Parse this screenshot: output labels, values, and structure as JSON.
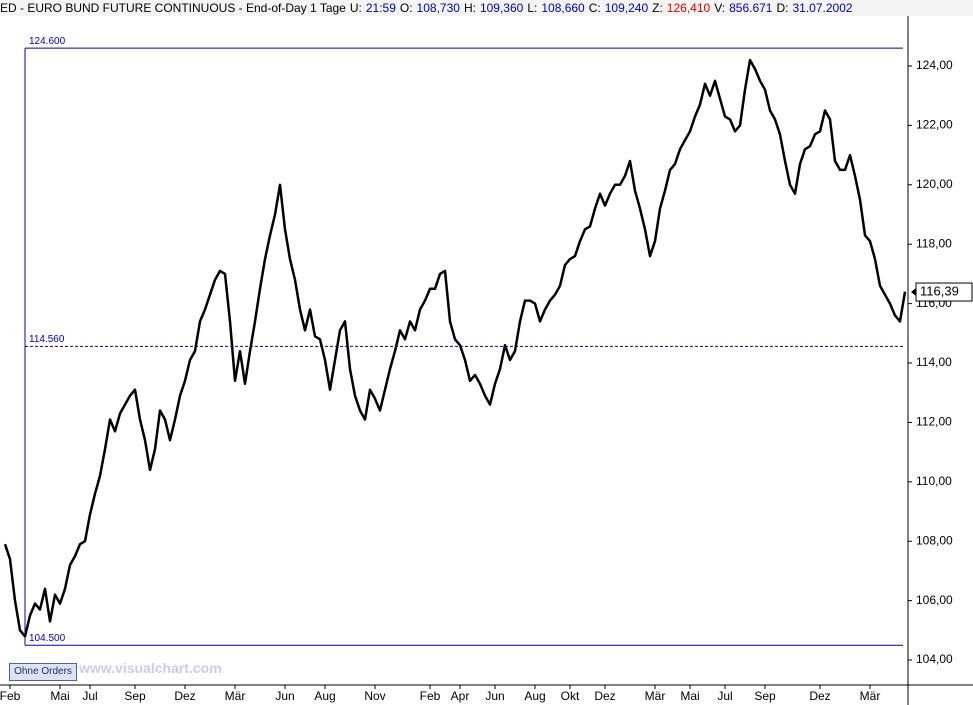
{
  "header": {
    "title": "ED - EURO BUND FUTURE CONTINUOUS - End-of-Day 1 Tage",
    "fields": [
      {
        "key": "U:",
        "value": "21:59",
        "color": "#0000c0"
      },
      {
        "key": "O:",
        "value": "108,730",
        "color": "#0000c0"
      },
      {
        "key": "H:",
        "value": "109,360",
        "color": "#0000c0"
      },
      {
        "key": "L:",
        "value": "108,660",
        "color": "#0000c0"
      },
      {
        "key": "C:",
        "value": "109,240",
        "color": "#0000c0"
      },
      {
        "key": "Z:",
        "value": "126,410",
        "color": "#e00000"
      },
      {
        "key": "V:",
        "value": "856.671",
        "color": "#0000c0"
      },
      {
        "key": "D:",
        "value": "31.07.2002",
        "color": "#0000c0"
      }
    ]
  },
  "button": "Ohne Orders",
  "watermark": "www.visualchart.com",
  "chart_data": {
    "type": "line",
    "color": "#000000",
    "line_color": "#0000c0",
    "values": [
      107.9,
      107.4,
      106.0,
      105.0,
      104.8,
      105.5,
      105.9,
      105.7,
      106.4,
      105.3,
      106.2,
      105.9,
      106.4,
      107.2,
      107.5,
      107.9,
      108.0,
      108.9,
      109.6,
      110.2,
      111.1,
      112.1,
      111.7,
      112.3,
      112.6,
      112.9,
      113.1,
      112.1,
      111.4,
      110.4,
      111.1,
      112.4,
      112.1,
      111.4,
      112.1,
      112.9,
      113.4,
      114.1,
      114.4,
      115.4,
      115.8,
      116.3,
      116.8,
      117.1,
      117.0,
      115.4,
      113.4,
      114.4,
      113.3,
      114.4,
      115.4,
      116.5,
      117.5,
      118.3,
      119.0,
      120.0,
      118.5,
      117.5,
      116.8,
      115.8,
      115.1,
      115.8,
      114.9,
      114.8,
      114.1,
      113.1,
      114.1,
      115.1,
      115.4,
      113.8,
      112.9,
      112.4,
      112.1,
      113.1,
      112.8,
      112.4,
      113.1,
      113.8,
      114.4,
      115.1,
      114.8,
      115.4,
      115.1,
      115.8,
      116.1,
      116.5,
      116.5,
      117.0,
      117.1,
      115.4,
      114.8,
      114.6,
      114.1,
      113.4,
      113.6,
      113.3,
      112.9,
      112.6,
      113.3,
      113.8,
      114.6,
      114.1,
      114.4,
      115.4,
      116.1,
      116.1,
      116.0,
      115.4,
      115.8,
      116.1,
      116.3,
      116.6,
      117.3,
      117.5,
      117.6,
      118.1,
      118.5,
      118.6,
      119.2,
      119.7,
      119.3,
      119.7,
      120.0,
      120.0,
      120.3,
      120.8,
      119.8,
      119.2,
      118.5,
      117.6,
      118.1,
      119.2,
      119.8,
      120.5,
      120.7,
      121.2,
      121.5,
      121.8,
      122.3,
      122.7,
      123.4,
      123.0,
      123.5,
      122.9,
      122.3,
      122.2,
      121.8,
      122.0,
      123.2,
      124.2,
      123.9,
      123.5,
      123.2,
      122.5,
      122.2,
      121.7,
      120.8,
      120.0,
      119.7,
      120.7,
      121.2,
      121.3,
      121.7,
      121.8,
      122.5,
      122.2,
      120.8,
      120.5,
      120.5,
      121.0,
      120.3,
      119.5,
      118.3,
      118.1,
      117.5,
      116.6,
      116.3,
      116.0,
      115.6,
      115.4,
      116.4
    ],
    "xlim": [
      -1,
      180.6
    ],
    "xticks": [
      {
        "value": 1,
        "label": "Feb"
      },
      {
        "value": 11,
        "label": "Mai"
      },
      {
        "value": 17,
        "label": "Jul"
      },
      {
        "value": 26,
        "label": "Sep"
      },
      {
        "value": 36,
        "label": "Dez"
      },
      {
        "value": 46,
        "label": "Mär"
      },
      {
        "value": 56,
        "label": "Jun"
      },
      {
        "value": 64,
        "label": "Aug"
      },
      {
        "value": 74,
        "label": "Nov"
      },
      {
        "value": 85,
        "label": "Feb"
      },
      {
        "value": 91,
        "label": "Apr"
      },
      {
        "value": 98,
        "label": "Jun"
      },
      {
        "value": 106,
        "label": "Aug"
      },
      {
        "value": 113,
        "label": "Okt"
      },
      {
        "value": 120,
        "label": "Dez"
      },
      {
        "value": 130,
        "label": "Mär"
      },
      {
        "value": 137,
        "label": "Mai"
      },
      {
        "value": 144,
        "label": "Jul"
      },
      {
        "value": 152,
        "label": "Sep"
      },
      {
        "value": 163,
        "label": "Dez"
      },
      {
        "value": 173,
        "label": "Mär"
      }
    ],
    "ylim": [
      103.16,
      125.75
    ],
    "yticks": [
      {
        "value": 104,
        "label": "104,00"
      },
      {
        "value": 106,
        "label": "106,00"
      },
      {
        "value": 108,
        "label": "108,00"
      },
      {
        "value": 110,
        "label": "110,00"
      },
      {
        "value": 112,
        "label": "112,00"
      },
      {
        "value": 114,
        "label": "114,00"
      },
      {
        "value": 116,
        "label": "116,00"
      },
      {
        "value": 118,
        "label": "118,00"
      },
      {
        "value": 120,
        "label": "120,00"
      },
      {
        "value": 122,
        "label": "122,00"
      },
      {
        "value": 124,
        "label": "124,00"
      }
    ],
    "annotations": [
      {
        "value": 124.6,
        "label": "124.600",
        "style": "solid",
        "start": 4
      },
      {
        "value": 114.56,
        "label": "114.560",
        "style": "dashed",
        "start": 4
      },
      {
        "value": 104.5,
        "label": "104.500",
        "style": "solid",
        "start": 4
      }
    ],
    "last_price": {
      "value": 116.39,
      "label": "116,39"
    }
  }
}
